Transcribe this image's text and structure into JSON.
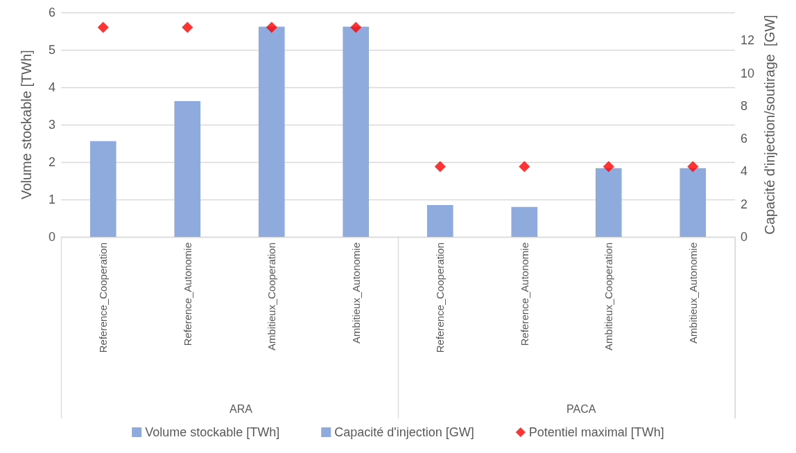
{
  "chart_data": {
    "type": "bar",
    "categories": [
      "Reference_Cooperation",
      "Reference_Autonomie",
      "Ambitieux_Cooperation",
      "Ambitieux_Autonomie",
      "Reference_Cooperation",
      "Reference_Autonomie",
      "Ambitieux_Cooperation",
      "Ambitieux_Autonomie"
    ],
    "series": [
      {
        "name": "Volume stockable [TWh]",
        "color": "#8faadc",
        "values": [
          2.56,
          3.63,
          5.62,
          5.62,
          0.85,
          0.8,
          1.84,
          1.84
        ]
      },
      {
        "name": "Capacité d'injection [GW]",
        "color": "#8faadc",
        "values": [
          null,
          null,
          null,
          null,
          null,
          null,
          null,
          null
        ]
      },
      {
        "name": "Potentiel maximal [TWh]",
        "type": "scatter",
        "color": "#ff0000",
        "marker": "diamond",
        "values": [
          5.6,
          5.6,
          5.6,
          5.6,
          1.88,
          1.88,
          1.88,
          1.88
        ]
      }
    ],
    "ylabel": "Volume stockable [TWh]",
    "y2label": "Capacité d'injection/soutirage  [GW]",
    "ylim": [
      0,
      6
    ],
    "yticks": [
      0,
      1,
      2,
      3,
      4,
      5,
      6
    ],
    "y2lim": [
      0,
      13.7
    ],
    "y2ticks": [
      0,
      2,
      4,
      6,
      8,
      10,
      12
    ],
    "annotations": [
      "ARA",
      "PACA"
    ],
    "grid": "y",
    "legend": "bottom"
  }
}
